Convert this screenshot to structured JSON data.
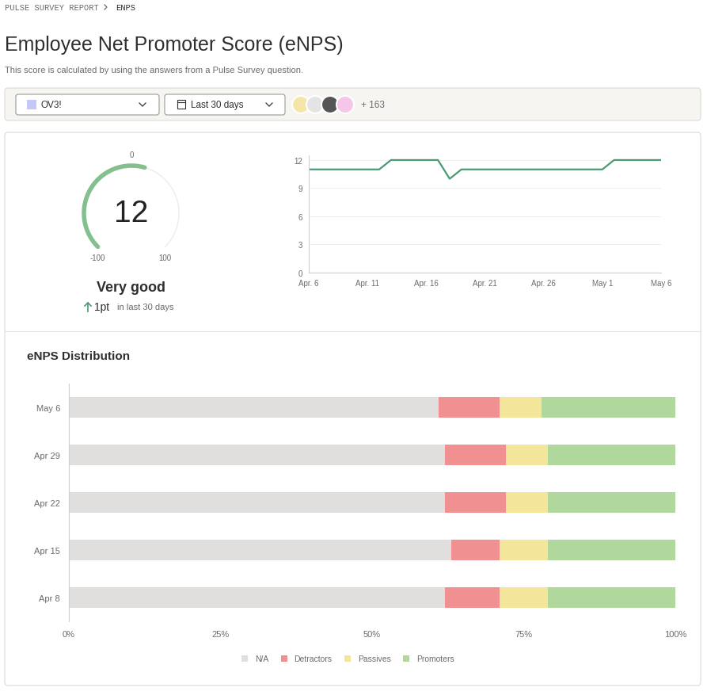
{
  "header": {
    "breadcrumb": [
      "PULSE SURVEY REPORT",
      "ENPS"
    ],
    "title": "Employee Net Promoter Score (eNPS)",
    "subtitle": "This score is calculated by using the answers from a Pulse Survey question."
  },
  "filters": {
    "group": "OV3!",
    "period": "Last 30 days",
    "participants_more": "+ 163"
  },
  "chart_data": [
    {
      "type": "gauge",
      "value": 12,
      "min": -100,
      "max": 100,
      "ticks": [
        -100,
        0,
        100
      ],
      "rating": "Very good",
      "change": 1,
      "change_label": "1pt",
      "change_period": "in last 30 days",
      "color": "#84c08e"
    },
    {
      "type": "line",
      "categories": [
        "Apr. 6",
        null,
        null,
        null,
        null,
        "Apr. 11",
        null,
        null,
        null,
        null,
        "Apr. 16",
        null,
        null,
        null,
        null,
        "Apr. 21",
        null,
        null,
        null,
        null,
        "Apr. 26",
        null,
        null,
        null,
        null,
        "May 1",
        null,
        null,
        null,
        null,
        "May 6"
      ],
      "values": [
        11,
        11,
        11,
        11,
        11,
        11,
        11,
        12,
        12,
        12,
        12,
        12,
        10,
        11,
        11,
        11,
        11,
        11,
        11,
        11,
        11,
        11,
        11,
        11,
        11,
        11,
        12,
        12,
        12,
        12,
        12
      ],
      "ylim": [
        0,
        12.5
      ],
      "yticks": [
        0,
        3,
        6,
        9,
        12
      ],
      "grid": true,
      "color": "#4a9a73"
    },
    {
      "type": "bar",
      "title": "eNPS Distribution",
      "orientation": "horizontal",
      "stacked": true,
      "categories": [
        "May 6",
        "Apr 29",
        "Apr 22",
        "Apr 15",
        "Apr 8"
      ],
      "series": [
        {
          "name": "N/A",
          "color": "#e0dfdd",
          "values": [
            61,
            62,
            62,
            63,
            62
          ]
        },
        {
          "name": "Detractors",
          "color": "#f09090",
          "values": [
            10,
            10,
            10,
            8,
            9
          ]
        },
        {
          "name": "Passives",
          "color": "#f3e59a",
          "values": [
            7,
            7,
            7,
            8,
            8
          ]
        },
        {
          "name": "Promoters",
          "color": "#b0d79c",
          "values": [
            22,
            21,
            21,
            21,
            21
          ]
        }
      ],
      "xlim": [
        0,
        100
      ],
      "xticks": [
        {
          "value": 0,
          "label": "0%"
        },
        {
          "value": 25,
          "label": "25%"
        },
        {
          "value": 50,
          "label": "50%"
        },
        {
          "value": 75,
          "label": "75%"
        },
        {
          "value": 100,
          "label": "100%"
        }
      ],
      "legend": "bottom"
    }
  ]
}
